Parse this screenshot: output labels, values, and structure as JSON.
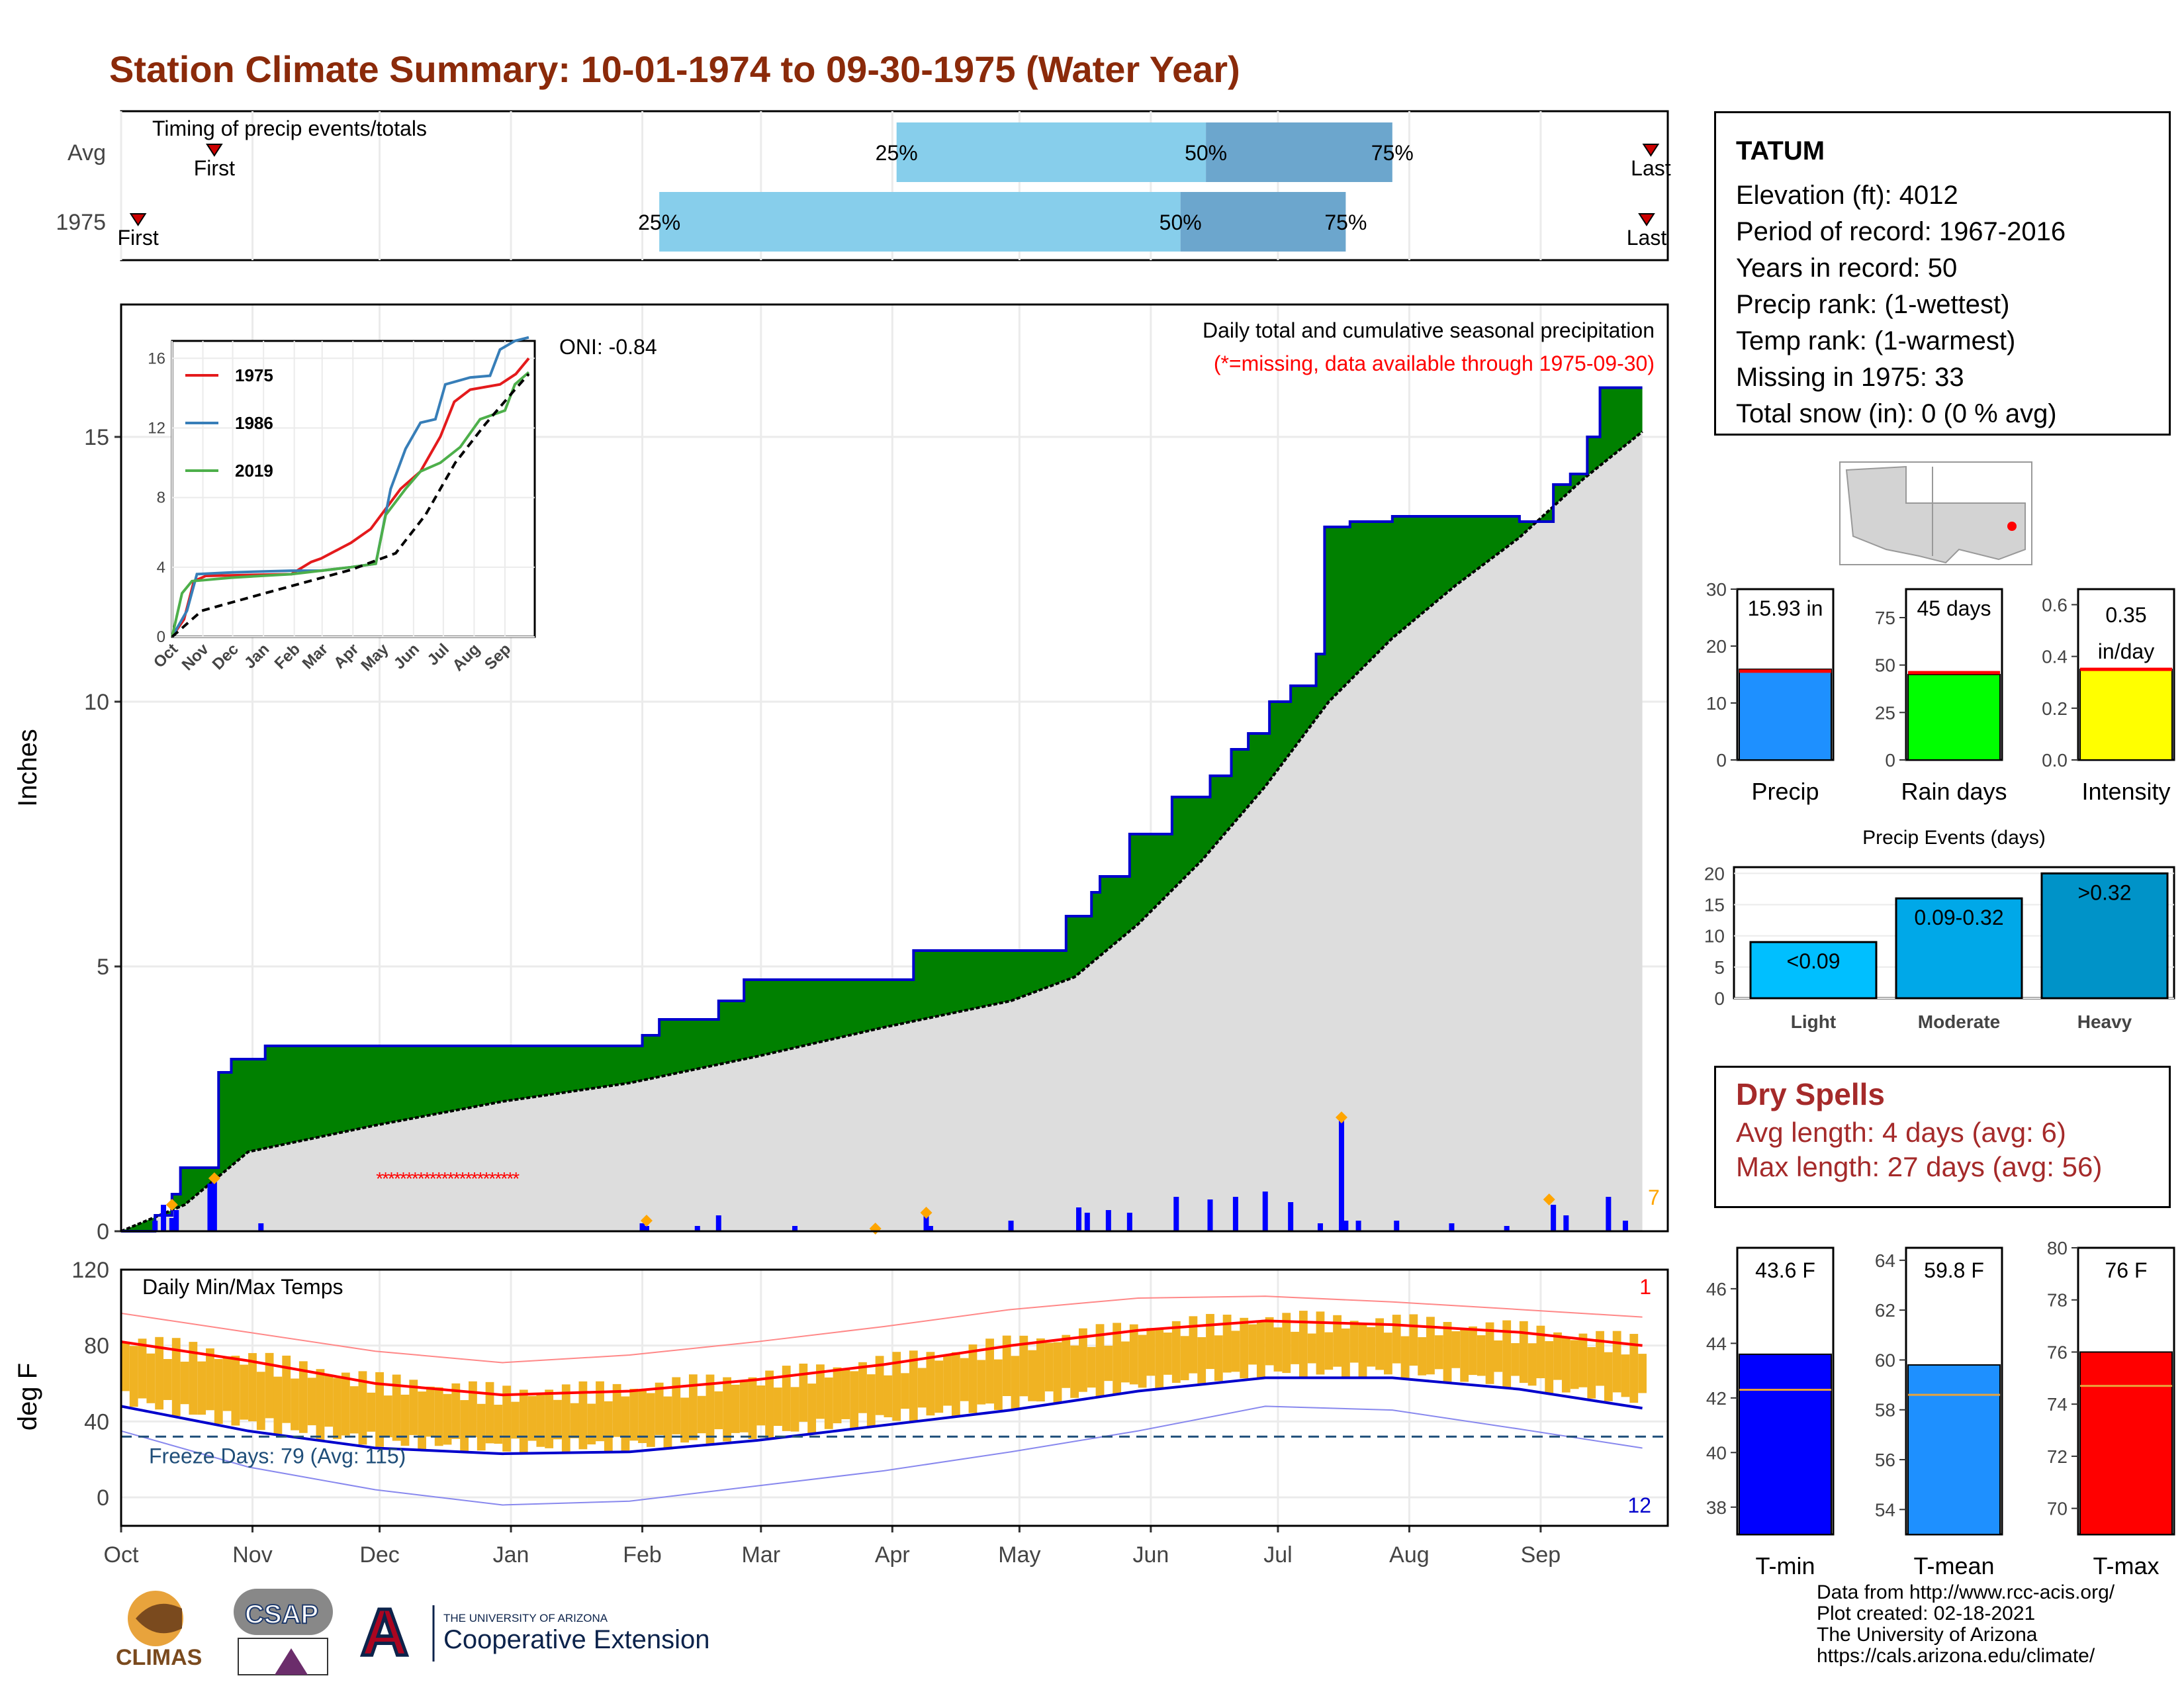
{
  "title": "Station Climate Summary: 10-01-1974 to 09-30-1975 (Water Year)",
  "timing_panel": {
    "label": "Timing of precip events/totals",
    "rows": [
      {
        "name": "Avg",
        "first_label": "First",
        "last_label": "Last",
        "first_day": 22,
        "last_day": 361,
        "p25_day": 183,
        "p50_day": 256,
        "p75_day": 300
      },
      {
        "name": "1975",
        "first_label": "First",
        "last_label": "Last",
        "first_day": 4,
        "last_day": 360,
        "p25_day": 127,
        "p50_day": 250,
        "p75_day": 289
      }
    ],
    "pct_labels": [
      "25%",
      "50%",
      "75%"
    ],
    "colors": {
      "early": "#87CEEB",
      "late": "#6CA6CD",
      "marker": "#CC0000"
    }
  },
  "chart_data": [
    {
      "type": "area",
      "name": "precipitation",
      "title": "Daily total and cumulative seasonal precipitation",
      "subtitle": "(*=missing, data available through 1975-09-30)",
      "oni": "ONI: -0.84",
      "ylabel": "Inches",
      "ylim": [
        0,
        17.5
      ],
      "yticks": [
        0,
        5,
        10,
        15
      ],
      "x_months": [
        "Oct",
        "Nov",
        "Dec",
        "Jan",
        "Feb",
        "Mar",
        "Apr",
        "May",
        "Jun",
        "Jul",
        "Aug",
        "Sep"
      ],
      "corner_count": "7",
      "missing_range_days": [
        61,
        94
      ],
      "cumulative_1975": [
        [
          0,
          0
        ],
        [
          8,
          0.3
        ],
        [
          12,
          0.7
        ],
        [
          14,
          1.2
        ],
        [
          22,
          1.2
        ],
        [
          23,
          3.0
        ],
        [
          26,
          3.25
        ],
        [
          32,
          3.25
        ],
        [
          34,
          3.5
        ],
        [
          122,
          3.5
        ],
        [
          123,
          3.7
        ],
        [
          127,
          4.0
        ],
        [
          140,
          4.0
        ],
        [
          141,
          4.35
        ],
        [
          147,
          4.75
        ],
        [
          186,
          4.75
        ],
        [
          187,
          5.3
        ],
        [
          222,
          5.3
        ],
        [
          223,
          5.95
        ],
        [
          229,
          6.4
        ],
        [
          231,
          6.7
        ],
        [
          238,
          7.5
        ],
        [
          247,
          7.5
        ],
        [
          248,
          8.2
        ],
        [
          256,
          8.2
        ],
        [
          257,
          8.6
        ],
        [
          262,
          9.1
        ],
        [
          266,
          9.4
        ],
        [
          271,
          10.0
        ],
        [
          276,
          10.3
        ],
        [
          282,
          10.9
        ],
        [
          284,
          13.3
        ],
        [
          290,
          13.4
        ],
        [
          300,
          13.5
        ],
        [
          320,
          13.5
        ],
        [
          330,
          13.4
        ],
        [
          338,
          14.1
        ],
        [
          342,
          14.3
        ],
        [
          346,
          15.0
        ],
        [
          349,
          15.93
        ],
        [
          359,
          15.93
        ]
      ],
      "avg_cumulative": [
        [
          0,
          0
        ],
        [
          15,
          0.5
        ],
        [
          30,
          1.5
        ],
        [
          60,
          2.0
        ],
        [
          90,
          2.45
        ],
        [
          120,
          2.8
        ],
        [
          150,
          3.3
        ],
        [
          180,
          3.85
        ],
        [
          210,
          4.35
        ],
        [
          225,
          4.8
        ],
        [
          240,
          5.8
        ],
        [
          255,
          7.0
        ],
        [
          270,
          8.4
        ],
        [
          285,
          10.0
        ],
        [
          300,
          11.2
        ],
        [
          315,
          12.2
        ],
        [
          330,
          13.1
        ],
        [
          345,
          14.2
        ],
        [
          359,
          15.1
        ]
      ],
      "daily_bars": [
        [
          8,
          0.2
        ],
        [
          10,
          0.5
        ],
        [
          12,
          0.25
        ],
        [
          13,
          0.4
        ],
        [
          21,
          0.9
        ],
        [
          22,
          0.95
        ],
        [
          33,
          0.15
        ],
        [
          123,
          0.15
        ],
        [
          124,
          0.1
        ],
        [
          136,
          0.1
        ],
        [
          141,
          0.3
        ],
        [
          159,
          0.1
        ],
        [
          190,
          0.35
        ],
        [
          191,
          0.1
        ],
        [
          210,
          0.2
        ],
        [
          226,
          0.45
        ],
        [
          228,
          0.35
        ],
        [
          233,
          0.4
        ],
        [
          238,
          0.35
        ],
        [
          249,
          0.65
        ],
        [
          257,
          0.6
        ],
        [
          263,
          0.65
        ],
        [
          270,
          0.75
        ],
        [
          276,
          0.55
        ],
        [
          283,
          0.15
        ],
        [
          288,
          2.1
        ],
        [
          289,
          0.2
        ],
        [
          292,
          0.2
        ],
        [
          301,
          0.2
        ],
        [
          314,
          0.15
        ],
        [
          327,
          0.1
        ],
        [
          338,
          0.5
        ],
        [
          341,
          0.3
        ],
        [
          351,
          0.65
        ],
        [
          355,
          0.2
        ]
      ],
      "event_markers": [
        [
          12,
          0.5
        ],
        [
          22,
          1.0
        ],
        [
          124,
          0.2
        ],
        [
          178,
          0.05
        ],
        [
          190,
          0.35
        ],
        [
          288,
          2.15
        ],
        [
          337,
          0.6
        ]
      ],
      "colors": {
        "above": "#008000",
        "line": "#0000CC",
        "avg_fill": "#DDDDDD",
        "bars": "#0000FF",
        "markers": "#FFA500",
        "missing": "#FF0000"
      }
    },
    {
      "type": "line",
      "name": "inset-cumulative",
      "categories": [
        "Oct",
        "Nov",
        "Dec",
        "Jan",
        "Feb",
        "Mar",
        "Apr",
        "May",
        "Jun",
        "Jul",
        "Aug",
        "Sep"
      ],
      "yticks": [
        0,
        4,
        8,
        12,
        16
      ],
      "ylim": [
        0,
        17
      ],
      "series": [
        {
          "name": "1975",
          "color": "#E41A1C",
          "values": [
            [
              0,
              0
            ],
            [
              12,
              1
            ],
            [
              22,
              3.2
            ],
            [
              34,
              3.5
            ],
            [
              120,
              3.6
            ],
            [
              140,
              4.3
            ],
            [
              150,
              4.5
            ],
            [
              170,
              5.1
            ],
            [
              180,
              5.4
            ],
            [
              200,
              6.2
            ],
            [
              230,
              8.5
            ],
            [
              250,
              9.5
            ],
            [
              270,
              11.5
            ],
            [
              284,
              13.5
            ],
            [
              300,
              14.2
            ],
            [
              330,
              14.5
            ],
            [
              346,
              15.1
            ],
            [
              359,
              16.0
            ]
          ]
        },
        {
          "name": "1986",
          "color": "#377EB8",
          "values": [
            [
              0,
              0
            ],
            [
              15,
              1.5
            ],
            [
              25,
              3.6
            ],
            [
              60,
              3.7
            ],
            [
              120,
              3.8
            ],
            [
              150,
              3.8
            ],
            [
              180,
              4.0
            ],
            [
              205,
              4.2
            ],
            [
              220,
              8.5
            ],
            [
              235,
              10.8
            ],
            [
              250,
              12.3
            ],
            [
              265,
              12.5
            ],
            [
              275,
              14.5
            ],
            [
              300,
              14.9
            ],
            [
              320,
              15.0
            ],
            [
              330,
              16.5
            ],
            [
              345,
              17.0
            ],
            [
              359,
              17.2
            ]
          ]
        },
        {
          "name": "2019",
          "color": "#4DAF4A",
          "values": [
            [
              0,
              0
            ],
            [
              10,
              2.5
            ],
            [
              20,
              3.2
            ],
            [
              60,
              3.4
            ],
            [
              120,
              3.6
            ],
            [
              150,
              3.8
            ],
            [
              180,
              4.0
            ],
            [
              205,
              4.2
            ],
            [
              215,
              7.0
            ],
            [
              235,
              8.5
            ],
            [
              250,
              9.5
            ],
            [
              270,
              10.0
            ],
            [
              290,
              10.9
            ],
            [
              310,
              12.5
            ],
            [
              335,
              13.0
            ],
            [
              345,
              14.5
            ],
            [
              359,
              15.2
            ]
          ]
        },
        {
          "name": "Avg",
          "color": "#000000",
          "dashed": true,
          "values": [
            [
              0,
              0
            ],
            [
              30,
              1.5
            ],
            [
              90,
              2.45
            ],
            [
              180,
              3.85
            ],
            [
              225,
              4.8
            ],
            [
              255,
              7.0
            ],
            [
              285,
              10.0
            ],
            [
              315,
              12.2
            ],
            [
              345,
              14.2
            ],
            [
              359,
              15.1
            ]
          ]
        }
      ]
    },
    {
      "type": "bar",
      "name": "temperature",
      "title": "Daily Min/Max Temps",
      "ylabel": "deg F",
      "ylim": [
        -15,
        120
      ],
      "yticks": [
        0,
        40,
        80,
        120
      ],
      "x_months": [
        "Oct",
        "Nov",
        "Dec",
        "Jan",
        "Feb",
        "Mar",
        "Apr",
        "May",
        "Jun",
        "Jul",
        "Aug",
        "Sep"
      ],
      "freeze_label": "Freeze Days: 79 (Avg: 115)",
      "freeze_line": 32,
      "record_high_count": "1",
      "record_low_count": "12",
      "avg_max": [
        [
          0,
          82
        ],
        [
          30,
          72
        ],
        [
          60,
          60
        ],
        [
          90,
          54
        ],
        [
          120,
          56
        ],
        [
          150,
          62
        ],
        [
          180,
          70
        ],
        [
          210,
          80
        ],
        [
          240,
          88
        ],
        [
          270,
          93
        ],
        [
          300,
          91
        ],
        [
          330,
          87
        ],
        [
          359,
          80
        ]
      ],
      "avg_min": [
        [
          0,
          48
        ],
        [
          30,
          35
        ],
        [
          60,
          26
        ],
        [
          90,
          23
        ],
        [
          120,
          24
        ],
        [
          150,
          30
        ],
        [
          180,
          38
        ],
        [
          210,
          46
        ],
        [
          240,
          56
        ],
        [
          270,
          63
        ],
        [
          300,
          63
        ],
        [
          330,
          57
        ],
        [
          359,
          47
        ]
      ],
      "record_max": [
        [
          0,
          97
        ],
        [
          30,
          87
        ],
        [
          60,
          77
        ],
        [
          90,
          71
        ],
        [
          120,
          75
        ],
        [
          150,
          82
        ],
        [
          180,
          90
        ],
        [
          210,
          99
        ],
        [
          240,
          105
        ],
        [
          270,
          106
        ],
        [
          300,
          103
        ],
        [
          330,
          99
        ],
        [
          359,
          95
        ]
      ],
      "record_min": [
        [
          0,
          35
        ],
        [
          30,
          16
        ],
        [
          60,
          4
        ],
        [
          90,
          -4
        ],
        [
          120,
          -2
        ],
        [
          150,
          6
        ],
        [
          180,
          14
        ],
        [
          210,
          24
        ],
        [
          240,
          35
        ],
        [
          270,
          48
        ],
        [
          300,
          46
        ],
        [
          330,
          36
        ],
        [
          359,
          26
        ]
      ],
      "colors": {
        "bars": "#F0B323",
        "avg_max": "#FF0000",
        "avg_min": "#0000CC",
        "rec_max": "#FF8888",
        "rec_min": "#8888EE",
        "freeze": "#1F4E79"
      }
    },
    {
      "type": "bar",
      "name": "precip-total",
      "categories": [
        "Precip"
      ],
      "values": [
        15.93
      ],
      "average": 15.6,
      "label": "15.93 in",
      "ylim": [
        0,
        30
      ],
      "yticks": [
        0,
        10,
        20,
        30
      ],
      "color": "#1E90FF"
    },
    {
      "type": "bar",
      "name": "rain-days",
      "categories": [
        "Rain days"
      ],
      "values": [
        45
      ],
      "average": 46,
      "label": "45 days",
      "ylim": [
        0,
        90
      ],
      "yticks": [
        0,
        25,
        50,
        75
      ],
      "color": "#00FF00"
    },
    {
      "type": "bar",
      "name": "intensity",
      "categories": [
        "Intensity"
      ],
      "values": [
        0.35
      ],
      "average": 0.35,
      "label": "0.35",
      "label2": "in/day",
      "ylim": [
        0,
        0.66
      ],
      "yticks": [
        "0.0",
        "0.2",
        "0.4",
        "0.6"
      ],
      "color": "#FFFF00"
    },
    {
      "type": "bar",
      "name": "precip-events",
      "title": "Precip Events (days)",
      "categories": [
        "Light",
        "Moderate",
        "Heavy"
      ],
      "bar_labels": [
        "<0.09",
        "0.09-0.32",
        ">0.32"
      ],
      "values": [
        9,
        16,
        20
      ],
      "ylim": [
        0,
        21
      ],
      "yticks": [
        0,
        5,
        10,
        15,
        20
      ],
      "colors": [
        "#00BFFF",
        "#00A8E8",
        "#0093C8"
      ]
    },
    {
      "type": "bar",
      "name": "t-min",
      "categories": [
        "T-min"
      ],
      "values": [
        43.6
      ],
      "average": 42.3,
      "label": "43.6 F",
      "ylim": [
        37,
        47.5
      ],
      "yticks": [
        38,
        40,
        42,
        44,
        46
      ],
      "color": "#0000FF"
    },
    {
      "type": "bar",
      "name": "t-mean",
      "categories": [
        "T-mean"
      ],
      "values": [
        59.8
      ],
      "average": 58.6,
      "label": "59.8 F",
      "ylim": [
        53,
        64.5
      ],
      "yticks": [
        54,
        56,
        58,
        60,
        62,
        64
      ],
      "color": "#1E90FF"
    },
    {
      "type": "bar",
      "name": "t-max",
      "categories": [
        "T-max"
      ],
      "values": [
        76
      ],
      "average": 74.7,
      "label": "76 F",
      "ylim": [
        69,
        80
      ],
      "yticks": [
        70,
        72,
        74,
        76,
        78,
        80
      ],
      "color": "#FF0000"
    }
  ],
  "station": {
    "name": "TATUM",
    "elevation": "Elevation (ft): 4012",
    "period": "Period of record: 1967-2016",
    "years": "Years in record: 50",
    "precip_rank": "Precip rank:  (1-wettest)",
    "temp_rank": "Temp rank:  (1-warmest)",
    "missing": "Missing in 1975: 33",
    "snow": "Total snow (in): 0 (0 % avg)"
  },
  "dry_spells": {
    "title": "Dry Spells",
    "avg_length": "Avg length: 4 days (avg: 6)",
    "max_length": "Max length: 27 days (avg: 56)"
  },
  "credits": {
    "line1": "Data from http://www.rcc-acis.org/",
    "line2": "Plot created: 02-18-2021",
    "line3": "The University of Arizona",
    "line4": "https://cals.arizona.edu/climate/"
  },
  "logos": {
    "climas": "CLIMAS",
    "csap": "CSAP",
    "ua_small": "THE UNIVERSITY OF ARIZONA",
    "ua_big": "Cooperative Extension"
  }
}
